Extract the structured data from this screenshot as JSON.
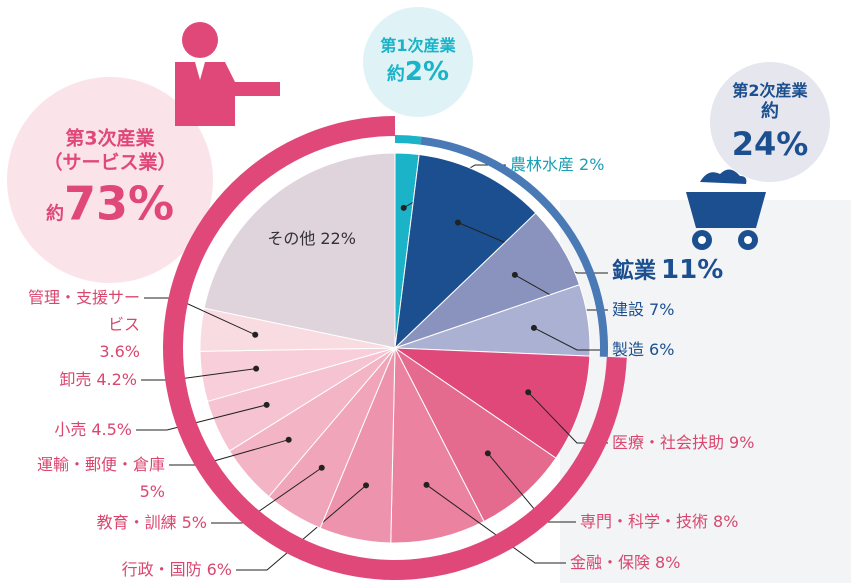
{
  "chart_data": {
    "type": "pie",
    "categories": [
      "農林水産",
      "鉱業",
      "建設",
      "製造",
      "医療・社会扶助",
      "専門・科学・技術",
      "金融・保険",
      "行政・国防",
      "教育・訓練",
      "運輸・郵便・倉庫",
      "小売",
      "卸売",
      "管理・支援サービス",
      "その他"
    ],
    "values": [
      2,
      11,
      7,
      6,
      9,
      8,
      8,
      6,
      5,
      5,
      4.5,
      4.2,
      3.6,
      22
    ],
    "value_labels": [
      "2%",
      "11%",
      "7%",
      "6%",
      "9%",
      "8%",
      "8%",
      "6%",
      "5%",
      "5%",
      "4.5%",
      "4.2%",
      "3.6%",
      "22%"
    ],
    "colors": [
      "#1ab3c8",
      "#1c4f8f",
      "#8a93bd",
      "#aab1d2",
      "#e0487a",
      "#e46a8e",
      "#ea82a0",
      "#ee93ad",
      "#f0a5ba",
      "#f3b4c6",
      "#f5c3d1",
      "#f7ced9",
      "#f9dbe2",
      "#dfd3dc"
    ],
    "group": [
      0,
      1,
      1,
      1,
      2,
      2,
      2,
      2,
      2,
      2,
      2,
      2,
      2,
      2
    ],
    "groups": [
      {
        "name": "第1次産業",
        "prefix": "約",
        "value": 2,
        "value_label": "2%",
        "color": "#1ab3c8",
        "bubble": "#dff3f6"
      },
      {
        "name": "第2次産業",
        "prefix": "約",
        "value": 24,
        "value_label": "24%",
        "color": "#4a7ab5",
        "bubble": "#e5e6ee"
      },
      {
        "name": "第3次産業",
        "subname": "（サービス業）",
        "prefix": "約",
        "value": 73,
        "value_label": "73%",
        "color": "#e0487a",
        "bubble": "#fbe3ea"
      }
    ]
  }
}
